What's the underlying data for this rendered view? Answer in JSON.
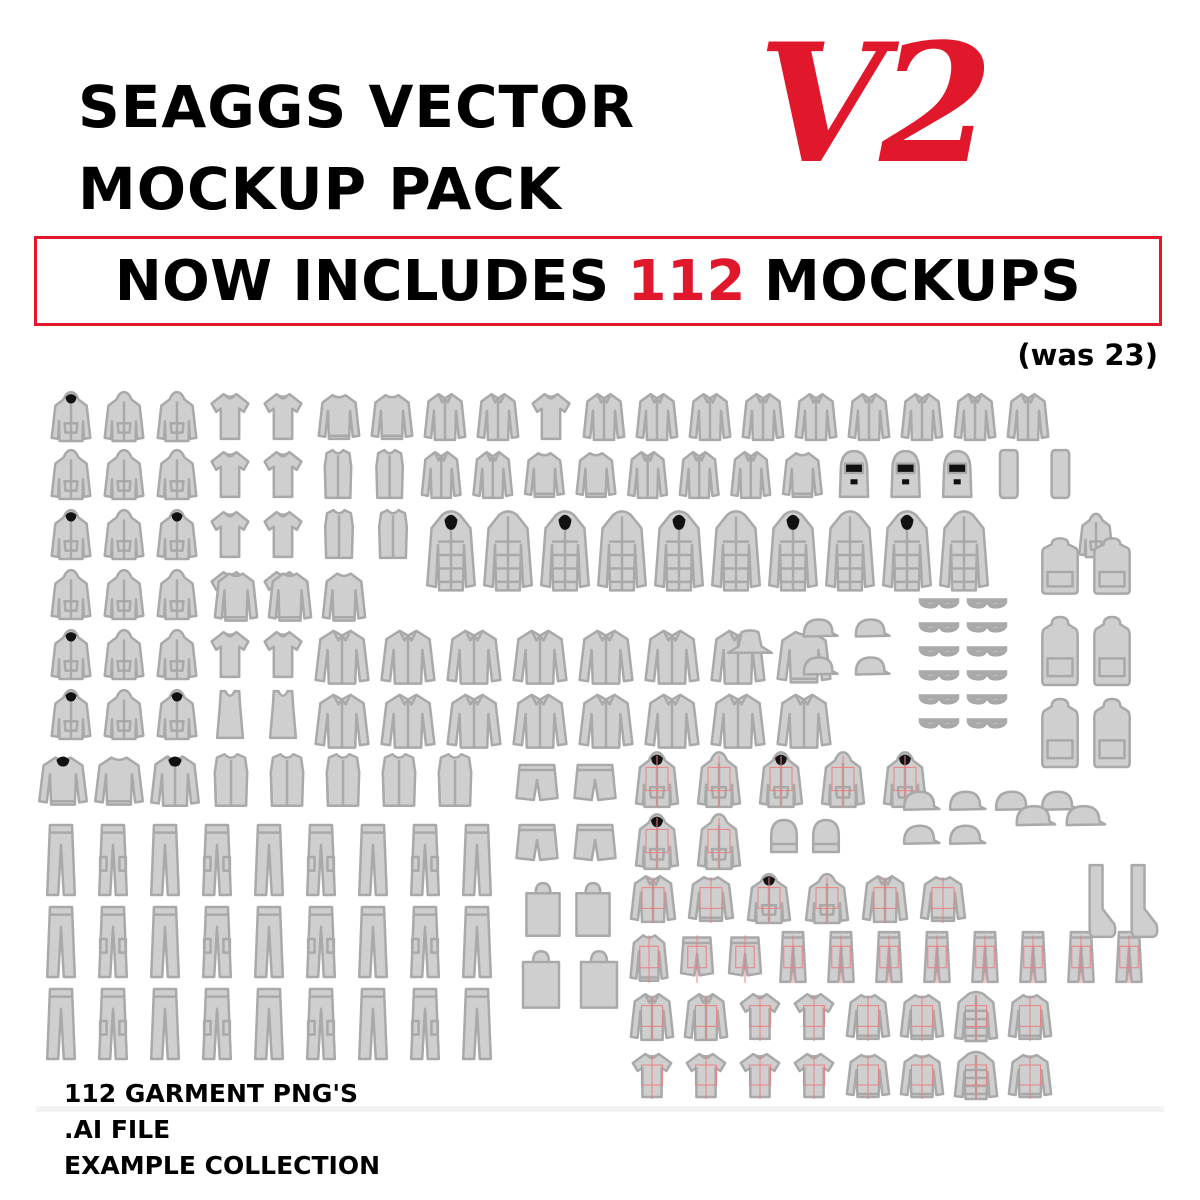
{
  "header": {
    "title_line1": "SEAGGS VECTOR",
    "title_line2": "MOCKUP PACK",
    "version": "V2",
    "accent_color": "#e1182b"
  },
  "banner": {
    "prefix": "NOW INCLUDES",
    "count": "112",
    "suffix": "MOCKUPS"
  },
  "previous_count": "(was 23)",
  "features": [
    "112 GARMENT PNG'S",
    ".AI FILE",
    "EXAMPLE COLLECTION"
  ],
  "garment_colors": {
    "fill": "#cfcfcf",
    "stroke": "#a9a9a9",
    "guide_lines": "#e98080"
  }
}
